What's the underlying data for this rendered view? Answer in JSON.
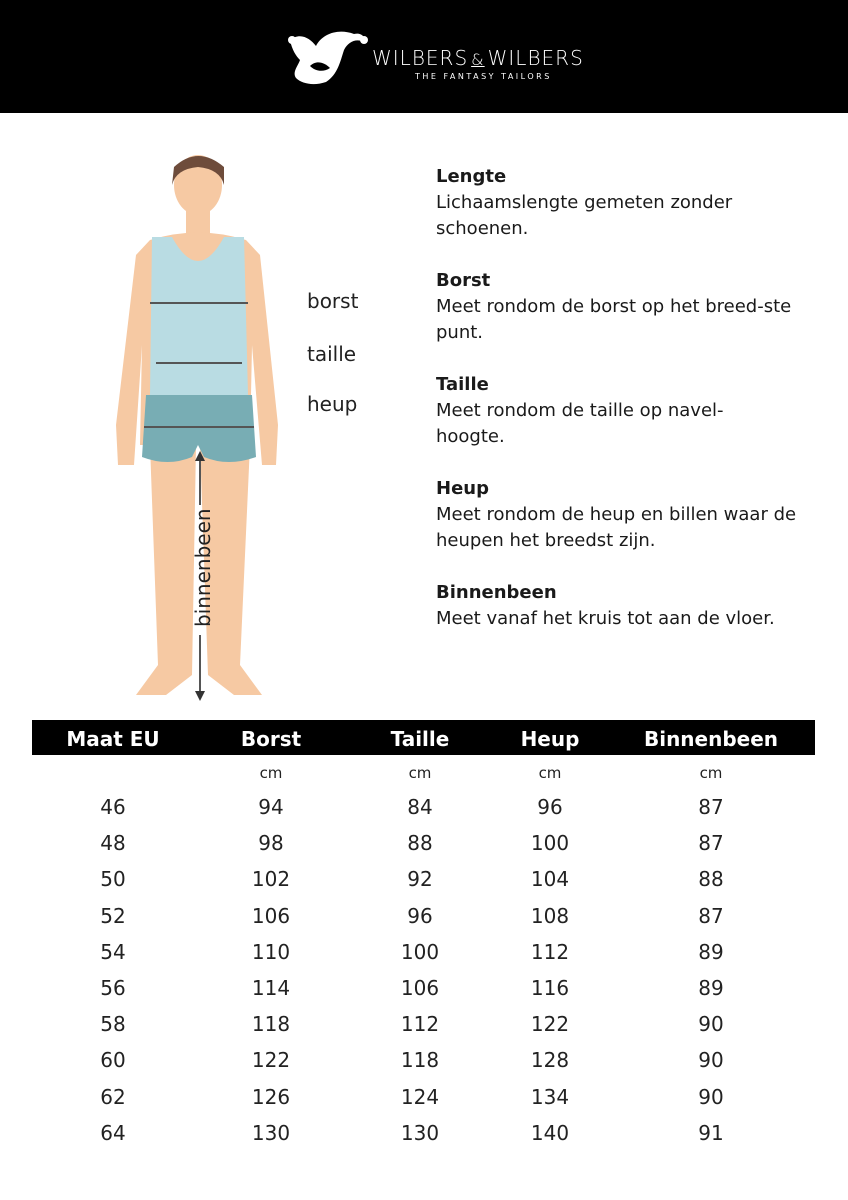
{
  "header": {
    "brand_left": "WILBERS",
    "brand_amp": "&",
    "brand_right": "WILBERS",
    "tagline": "THE FANTASY TAILORS"
  },
  "figure_labels": {
    "borst": "borst",
    "taille": "taille",
    "heup": "heup",
    "binnenbeen": "binnenbeen"
  },
  "colors": {
    "skin": "#f6c9a3",
    "shirt": "#b9dce3",
    "shorts": "#78adb4",
    "hair": "#6e4c3b",
    "header": "#000000"
  },
  "descriptions": [
    {
      "title": "Lengte",
      "text": "Lichaamslengte gemeten zonder schoenen."
    },
    {
      "title": "Borst",
      "text": "Meet rondom de borst op het breed-ste punt."
    },
    {
      "title": "Taille",
      "text": "Meet rondom de taille op navel-hoogte."
    },
    {
      "title": "Heup",
      "text": "Meet rondom de heup en billen waar de heupen het breedst zijn."
    },
    {
      "title": "Binnenbeen",
      "text": "Meet vanaf het kruis tot aan de vloer."
    }
  ],
  "table": {
    "headers": [
      "Maat EU",
      "Borst",
      "Taille",
      "Heup",
      "Binnenbeen"
    ],
    "units": [
      "",
      "cm",
      "cm",
      "cm",
      "cm"
    ],
    "rows": [
      [
        "46",
        "94",
        "84",
        "96",
        "87"
      ],
      [
        "48",
        "98",
        "88",
        "100",
        "87"
      ],
      [
        "50",
        "102",
        "92",
        "104",
        "88"
      ],
      [
        "52",
        "106",
        "96",
        "108",
        "87"
      ],
      [
        "54",
        "110",
        "100",
        "112",
        "89"
      ],
      [
        "56",
        "114",
        "106",
        "116",
        "89"
      ],
      [
        "58",
        "118",
        "112",
        "122",
        "90"
      ],
      [
        "60",
        "122",
        "118",
        "128",
        "90"
      ],
      [
        "62",
        "126",
        "124",
        "134",
        "90"
      ],
      [
        "64",
        "130",
        "130",
        "140",
        "91"
      ]
    ]
  }
}
